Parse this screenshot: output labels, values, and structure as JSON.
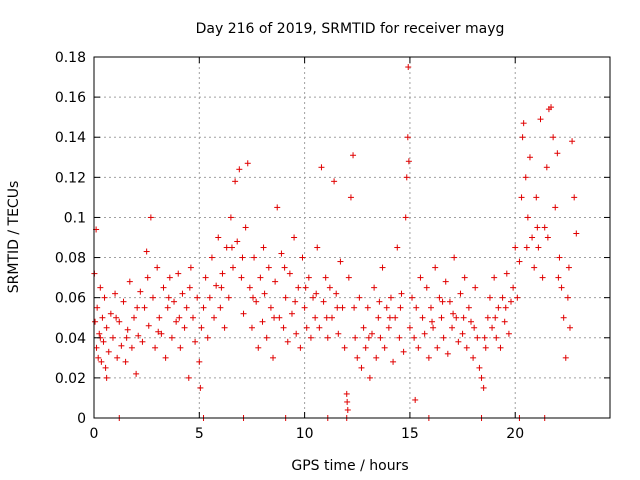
{
  "chart_data": {
    "type": "scatter",
    "title": "Day 216 of 2019, SRMTID for receiver mayg",
    "xlabel": "GPS time / hours",
    "ylabel": "SRMTID / TECUs",
    "xlim": [
      0,
      24.5
    ],
    "ylim": [
      0,
      0.18
    ],
    "xticks": [
      0,
      5,
      10,
      15,
      20
    ],
    "yticks": [
      0,
      0.02,
      0.04,
      0.06,
      0.08,
      0.1,
      0.12,
      0.14,
      0.16,
      0.18
    ],
    "grid": true,
    "marker": "+",
    "marker_color": "#e00000",
    "series": [
      {
        "name": "SRMTID",
        "points": [
          [
            0.02,
            0.072
          ],
          [
            0.05,
            0.048
          ],
          [
            0.1,
            0.094
          ],
          [
            0.12,
            0.035
          ],
          [
            0.15,
            0.055
          ],
          [
            0.2,
            0.03
          ],
          [
            0.25,
            0.042
          ],
          [
            0.3,
            0.065
          ],
          [
            0.35,
            0.028
          ],
          [
            0.4,
            0.05
          ],
          [
            0.45,
            0.038
          ],
          [
            0.5,
            0.06
          ],
          [
            0.55,
            0.025
          ],
          [
            0.6,
            0.045
          ],
          [
            0.7,
            0.033
          ],
          [
            0.8,
            0.052
          ],
          [
            0.9,
            0.04
          ],
          [
            1.0,
            0.062
          ],
          [
            1.1,
            0.03
          ],
          [
            1.2,
            0.048
          ],
          [
            1.3,
            0.036
          ],
          [
            1.4,
            0.058
          ],
          [
            1.5,
            0.028
          ],
          [
            1.6,
            0.044
          ],
          [
            1.7,
            0.068
          ],
          [
            1.8,
            0.035
          ],
          [
            1.9,
            0.05
          ],
          [
            2.0,
            0.022
          ],
          [
            2.1,
            0.041
          ],
          [
            2.2,
            0.063
          ],
          [
            2.3,
            0.038
          ],
          [
            2.4,
            0.055
          ],
          [
            2.5,
            0.083
          ],
          [
            2.6,
            0.046
          ],
          [
            2.7,
            0.1
          ],
          [
            2.8,
            0.06
          ],
          [
            2.9,
            0.035
          ],
          [
            3.0,
            0.075
          ],
          [
            3.1,
            0.05
          ],
          [
            3.2,
            0.042
          ],
          [
            3.3,
            0.065
          ],
          [
            3.4,
            0.03
          ],
          [
            3.5,
            0.055
          ],
          [
            3.6,
            0.07
          ],
          [
            3.7,
            0.04
          ],
          [
            3.8,
            0.058
          ],
          [
            3.9,
            0.048
          ],
          [
            4.0,
            0.072
          ],
          [
            4.1,
            0.035
          ],
          [
            4.2,
            0.062
          ],
          [
            4.3,
            0.045
          ],
          [
            4.4,
            0.055
          ],
          [
            4.5,
            0.02
          ],
          [
            4.6,
            0.075
          ],
          [
            4.7,
            0.05
          ],
          [
            4.8,
            0.038
          ],
          [
            4.9,
            0.06
          ],
          [
            5.0,
            0.028
          ],
          [
            5.05,
            0.015
          ],
          [
            5.1,
            0.045
          ],
          [
            5.2,
            0.055
          ],
          [
            5.3,
            0.07
          ],
          [
            5.4,
            0.04
          ],
          [
            5.5,
            0.06
          ],
          [
            5.6,
            0.08
          ],
          [
            5.7,
            0.05
          ],
          [
            5.8,
            0.066
          ],
          [
            5.9,
            0.09
          ],
          [
            6.0,
            0.055
          ],
          [
            6.1,
            0.072
          ],
          [
            6.2,
            0.045
          ],
          [
            6.3,
            0.085
          ],
          [
            6.4,
            0.06
          ],
          [
            6.5,
            0.1
          ],
          [
            6.6,
            0.075
          ],
          [
            6.7,
            0.118
          ],
          [
            6.8,
            0.088
          ],
          [
            6.9,
            0.124
          ],
          [
            7.0,
            0.07
          ],
          [
            7.1,
            0.052
          ],
          [
            7.2,
            0.095
          ],
          [
            7.3,
            0.127
          ],
          [
            7.4,
            0.065
          ],
          [
            7.5,
            0.045
          ],
          [
            7.6,
            0.08
          ],
          [
            7.7,
            0.058
          ],
          [
            7.8,
            0.035
          ],
          [
            7.9,
            0.07
          ],
          [
            8.0,
            0.048
          ],
          [
            8.1,
            0.062
          ],
          [
            8.2,
            0.04
          ],
          [
            8.3,
            0.075
          ],
          [
            8.4,
            0.055
          ],
          [
            8.5,
            0.03
          ],
          [
            8.6,
            0.068
          ],
          [
            8.7,
            0.105
          ],
          [
            8.8,
            0.05
          ],
          [
            8.9,
            0.082
          ],
          [
            9.0,
            0.045
          ],
          [
            9.1,
            0.06
          ],
          [
            9.2,
            0.038
          ],
          [
            9.3,
            0.072
          ],
          [
            9.4,
            0.052
          ],
          [
            9.5,
            0.09
          ],
          [
            9.6,
            0.042
          ],
          [
            9.7,
            0.065
          ],
          [
            9.8,
            0.035
          ],
          [
            9.9,
            0.08
          ],
          [
            10.0,
            0.055
          ],
          [
            10.1,
            0.045
          ],
          [
            10.2,
            0.07
          ],
          [
            10.3,
            0.04
          ],
          [
            10.4,
            0.06
          ],
          [
            10.5,
            0.05
          ],
          [
            10.6,
            0.085
          ],
          [
            10.7,
            0.045
          ],
          [
            10.8,
            0.125
          ],
          [
            10.9,
            0.058
          ],
          [
            11.0,
            0.07
          ],
          [
            11.1,
            0.04
          ],
          [
            11.2,
            0.065
          ],
          [
            11.3,
            0.05
          ],
          [
            11.4,
            0.118
          ],
          [
            11.5,
            0.062
          ],
          [
            11.6,
            0.042
          ],
          [
            11.7,
            0.078
          ],
          [
            11.8,
            0.055
          ],
          [
            11.9,
            0.035
          ],
          [
            12.0,
            0.012
          ],
          [
            12.02,
            0.008
          ],
          [
            12.05,
            0.004
          ],
          [
            12.1,
            0.07
          ],
          [
            12.2,
            0.11
          ],
          [
            12.3,
            0.131
          ],
          [
            12.35,
            0.055
          ],
          [
            12.4,
            0.04
          ],
          [
            12.5,
            0.03
          ],
          [
            12.6,
            0.06
          ],
          [
            12.7,
            0.025
          ],
          [
            12.8,
            0.045
          ],
          [
            12.9,
            0.035
          ],
          [
            13.0,
            0.055
          ],
          [
            13.1,
            0.02
          ],
          [
            13.2,
            0.042
          ],
          [
            13.3,
            0.065
          ],
          [
            13.4,
            0.03
          ],
          [
            13.5,
            0.05
          ],
          [
            13.6,
            0.04
          ],
          [
            13.7,
            0.075
          ],
          [
            13.8,
            0.035
          ],
          [
            13.9,
            0.055
          ],
          [
            14.0,
            0.045
          ],
          [
            14.1,
            0.06
          ],
          [
            14.2,
            0.028
          ],
          [
            14.3,
            0.05
          ],
          [
            14.4,
            0.085
          ],
          [
            14.5,
            0.04
          ],
          [
            14.6,
            0.062
          ],
          [
            14.7,
            0.033
          ],
          [
            14.8,
            0.1
          ],
          [
            14.85,
            0.12
          ],
          [
            14.9,
            0.14
          ],
          [
            14.92,
            0.175
          ],
          [
            14.95,
            0.128
          ],
          [
            15.0,
            0.045
          ],
          [
            15.1,
            0.06
          ],
          [
            15.2,
            0.04
          ],
          [
            15.25,
            0.009
          ],
          [
            15.3,
            0.055
          ],
          [
            15.4,
            0.035
          ],
          [
            15.5,
            0.07
          ],
          [
            15.6,
            0.05
          ],
          [
            15.7,
            0.042
          ],
          [
            15.8,
            0.065
          ],
          [
            15.9,
            0.03
          ],
          [
            16.0,
            0.055
          ],
          [
            16.1,
            0.045
          ],
          [
            16.2,
            0.075
          ],
          [
            16.3,
            0.035
          ],
          [
            16.4,
            0.06
          ],
          [
            16.5,
            0.05
          ],
          [
            16.6,
            0.04
          ],
          [
            16.7,
            0.068
          ],
          [
            16.8,
            0.032
          ],
          [
            16.9,
            0.058
          ],
          [
            17.0,
            0.045
          ],
          [
            17.1,
            0.08
          ],
          [
            17.2,
            0.05
          ],
          [
            17.3,
            0.038
          ],
          [
            17.4,
            0.062
          ],
          [
            17.5,
            0.042
          ],
          [
            17.6,
            0.07
          ],
          [
            17.7,
            0.035
          ],
          [
            17.8,
            0.055
          ],
          [
            17.9,
            0.048
          ],
          [
            18.0,
            0.03
          ],
          [
            18.1,
            0.065
          ],
          [
            18.2,
            0.04
          ],
          [
            18.3,
            0.025
          ],
          [
            18.4,
            0.02
          ],
          [
            18.5,
            0.015
          ],
          [
            18.6,
            0.035
          ],
          [
            18.7,
            0.05
          ],
          [
            18.8,
            0.06
          ],
          [
            18.9,
            0.045
          ],
          [
            19.0,
            0.07
          ],
          [
            19.1,
            0.04
          ],
          [
            19.2,
            0.055
          ],
          [
            19.3,
            0.035
          ],
          [
            19.4,
            0.06
          ],
          [
            19.5,
            0.048
          ],
          [
            19.6,
            0.072
          ],
          [
            19.7,
            0.042
          ],
          [
            19.8,
            0.058
          ],
          [
            19.9,
            0.065
          ],
          [
            20.0,
            0.085
          ],
          [
            20.1,
            0.06
          ],
          [
            20.2,
            0.078
          ],
          [
            20.3,
            0.11
          ],
          [
            20.35,
            0.14
          ],
          [
            20.4,
            0.147
          ],
          [
            20.5,
            0.12
          ],
          [
            20.6,
            0.1
          ],
          [
            20.7,
            0.13
          ],
          [
            20.8,
            0.09
          ],
          [
            20.9,
            0.075
          ],
          [
            21.0,
            0.11
          ],
          [
            21.1,
            0.085
          ],
          [
            21.2,
            0.149
          ],
          [
            21.3,
            0.07
          ],
          [
            21.4,
            0.095
          ],
          [
            21.5,
            0.125
          ],
          [
            21.6,
            0.154
          ],
          [
            21.7,
            0.155
          ],
          [
            21.8,
            0.14
          ],
          [
            21.9,
            0.105
          ],
          [
            22.0,
            0.132
          ],
          [
            22.1,
            0.08
          ],
          [
            22.2,
            0.065
          ],
          [
            22.3,
            0.05
          ],
          [
            22.4,
            0.03
          ],
          [
            22.5,
            0.06
          ],
          [
            22.6,
            0.045
          ],
          [
            22.7,
            0.138
          ],
          [
            22.8,
            0.11
          ],
          [
            22.9,
            0.092
          ],
          [
            0.3,
            0.04
          ],
          [
            0.6,
            0.02
          ],
          [
            1.05,
            0.05
          ],
          [
            1.55,
            0.04
          ],
          [
            2.05,
            0.055
          ],
          [
            2.55,
            0.07
          ],
          [
            3.05,
            0.043
          ],
          [
            3.55,
            0.06
          ],
          [
            4.05,
            0.05
          ],
          [
            4.55,
            0.065
          ],
          [
            6.05,
            0.065
          ],
          [
            6.55,
            0.085
          ],
          [
            7.05,
            0.08
          ],
          [
            7.55,
            0.06
          ],
          [
            8.05,
            0.085
          ],
          [
            8.55,
            0.05
          ],
          [
            9.05,
            0.075
          ],
          [
            9.55,
            0.058
          ],
          [
            10.05,
            0.065
          ],
          [
            10.55,
            0.062
          ],
          [
            11.05,
            0.05
          ],
          [
            11.55,
            0.055
          ],
          [
            13.05,
            0.04
          ],
          [
            13.55,
            0.058
          ],
          [
            14.05,
            0.05
          ],
          [
            14.55,
            0.055
          ],
          [
            16.05,
            0.048
          ],
          [
            16.55,
            0.058
          ],
          [
            17.05,
            0.052
          ],
          [
            17.55,
            0.05
          ],
          [
            18.05,
            0.045
          ],
          [
            18.55,
            0.04
          ],
          [
            19.05,
            0.05
          ],
          [
            19.55,
            0.055
          ],
          [
            20.55,
            0.085
          ],
          [
            21.05,
            0.095
          ],
          [
            21.55,
            0.09
          ],
          [
            22.05,
            0.07
          ],
          [
            22.55,
            0.075
          ],
          [
            5.2,
            0.0
          ],
          [
            12.0,
            0.0
          ],
          [
            20.2,
            0.0
          ],
          [
            1.2,
            0.0
          ],
          [
            7.1,
            0.0
          ],
          [
            9.1,
            0.0
          ],
          [
            11.1,
            0.0
          ],
          [
            15.9,
            0.0
          ],
          [
            18.4,
            0.0
          ],
          [
            21.4,
            0.0
          ]
        ]
      }
    ]
  }
}
